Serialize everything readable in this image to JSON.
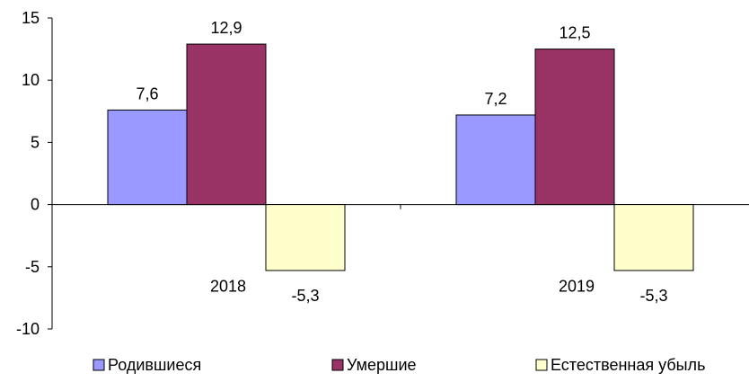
{
  "chart_data": {
    "type": "bar",
    "title": "",
    "xlabel": "",
    "ylabel": "",
    "categories": [
      "2018",
      "2019"
    ],
    "series": [
      {
        "name": "Родившиеся",
        "values": [
          7.6,
          7.2
        ],
        "labels": [
          "7,6",
          "7,2"
        ],
        "color": "#9999FF"
      },
      {
        "name": "Умершие",
        "values": [
          12.9,
          12.5
        ],
        "labels": [
          "12,9",
          "12,5"
        ],
        "color": "#993366"
      },
      {
        "name": "Естественная убыль",
        "values": [
          -5.3,
          -5.3
        ],
        "labels": [
          "-5,3",
          "-5,3"
        ],
        "color": "#FFFFCC"
      }
    ],
    "ylim": [
      -10,
      15
    ],
    "yticks": [
      15,
      10,
      5,
      0,
      -5,
      -10
    ],
    "ytick_labels": [
      "15",
      "10",
      "5",
      "0",
      "-5",
      "-10"
    ],
    "grid": false,
    "legend_position": "bottom"
  }
}
